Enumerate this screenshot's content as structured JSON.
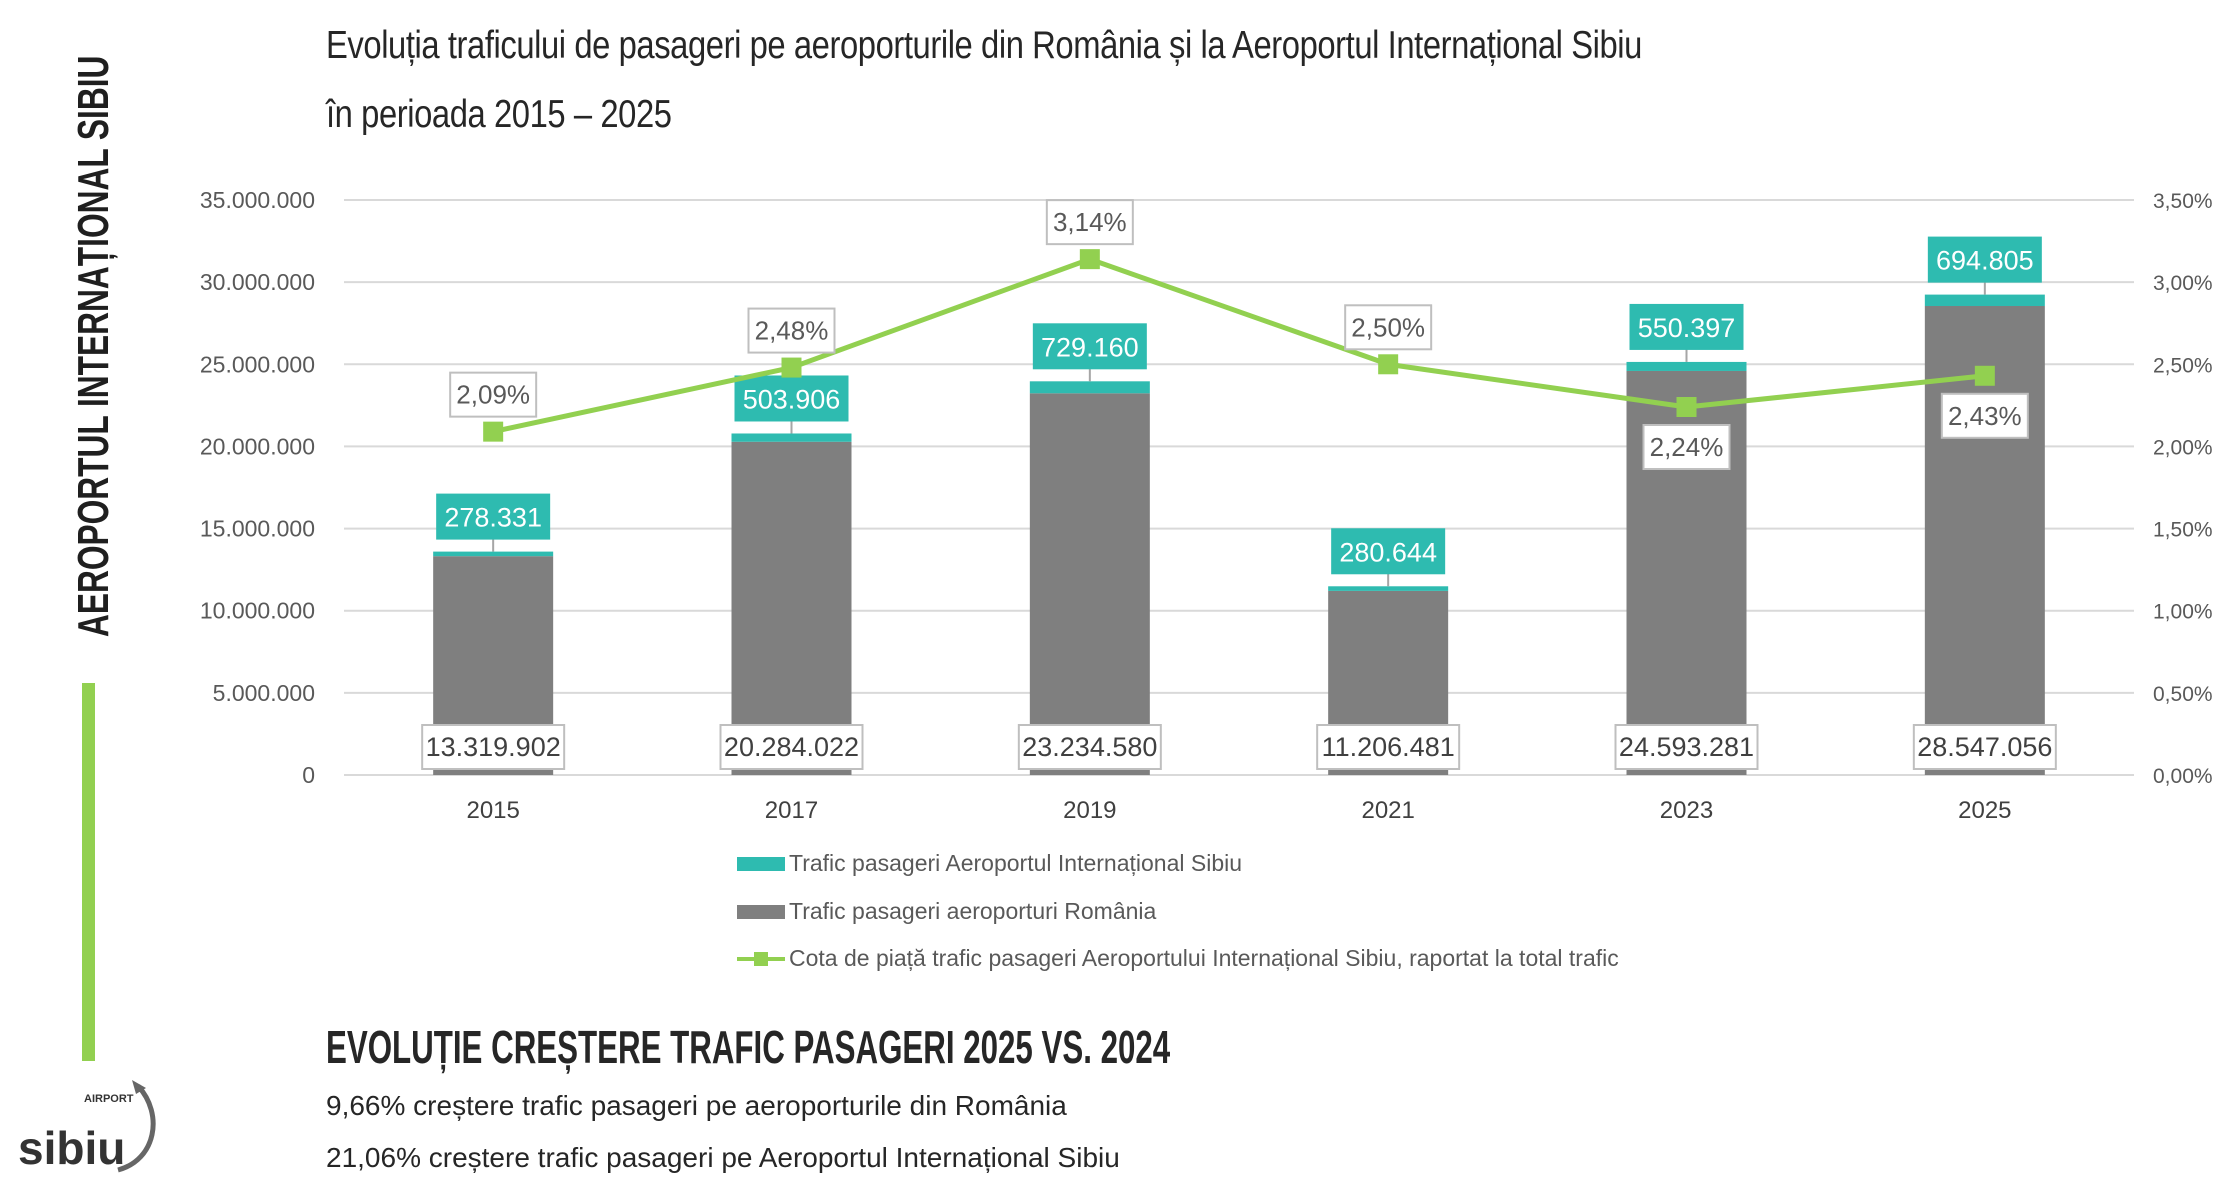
{
  "side_title": "AEROPORTUL INTERNAȚIONAL SIBIU",
  "title_line1": "Evoluția traficului de pasageri pe aeroporturile din România și la Aeroportul Internațional Sibiu",
  "title_line2": "în perioada 2015 – 2025",
  "colors": {
    "sibiu": "#2ebbb0",
    "romania": "#7f7f7f",
    "share": "#92d050",
    "grid": "#d9d9d9"
  },
  "chart_data": {
    "type": "bar",
    "stacked": true,
    "categories": [
      "2015",
      "2017",
      "2019",
      "2021",
      "2023",
      "2025"
    ],
    "series": [
      {
        "name": "Trafic pasageri aeroporturi România",
        "axis": "left",
        "values": [
          13319902,
          20284022,
          23234580,
          11206481,
          24593281,
          28547056
        ],
        "labels": [
          "13.319.902",
          "20.284.022",
          "23.234.580",
          "11.206.481",
          "24.593.281",
          "28.547.056"
        ]
      },
      {
        "name": "Trafic pasageri Aeroportul Internațional Sibiu",
        "axis": "left",
        "values": [
          278331,
          503906,
          729160,
          280644,
          550397,
          694805
        ],
        "labels": [
          "278.331",
          "503.906",
          "729.160",
          "280.644",
          "550.397",
          "694.805"
        ]
      },
      {
        "name": "Cota de piață trafic pasageri Aeroportului Internațional Sibiu, raportat la total trafic",
        "type": "line",
        "axis": "right",
        "values": [
          2.09,
          2.48,
          3.14,
          2.5,
          2.24,
          2.43
        ],
        "labels": [
          "2,09%",
          "2,48%",
          "3,14%",
          "2,50%",
          "2,24%",
          "2,43%"
        ]
      }
    ],
    "ylim": [
      0,
      35000000
    ],
    "y2lim": [
      0,
      3.5
    ],
    "yticks": [
      "0",
      "5.000.000",
      "10.000.000",
      "15.000.000",
      "20.000.000",
      "25.000.000",
      "30.000.000",
      "35.000.000"
    ],
    "y2ticks": [
      "0,00%",
      "0,50%",
      "1,00%",
      "1,50%",
      "2,00%",
      "2,50%",
      "3,00%",
      "3,50%"
    ],
    "grid": true,
    "legend": "bottom"
  },
  "legend": [
    "Trafic pasageri Aeroportul Internațional Sibiu",
    "Trafic pasageri aeroporturi România",
    "Cota de piață trafic pasageri Aeroportului Internațional Sibiu, raportat la total trafic"
  ],
  "growth": {
    "heading": "EVOLUȚIE CREȘTERE TRAFIC PASAGERI 2025 VS. 2024",
    "romania_pct": "9,66%",
    "romania_text": " creștere trafic pasageri pe aeroporturile din România",
    "sibiu_pct": "21,06%",
    "sibiu_text": " creștere trafic pasageri pe Aeroportul Internațional Sibiu"
  },
  "logo": {
    "text": "sibiu",
    "sub": "AIRPORT"
  }
}
